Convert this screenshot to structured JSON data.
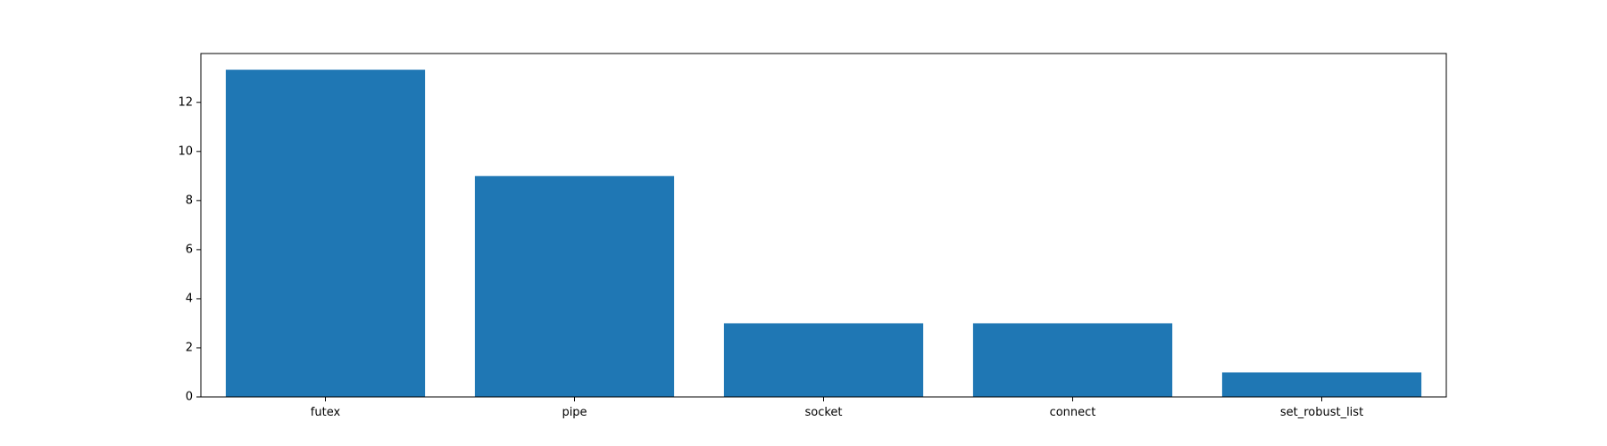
{
  "chart_data": {
    "type": "bar",
    "categories": [
      "futex",
      "pipe",
      "socket",
      "connect",
      "set_robust_list"
    ],
    "values": [
      13.33,
      9,
      3,
      3,
      1
    ],
    "ylim": [
      0,
      13.99
    ],
    "yticks": [
      0,
      2,
      4,
      6,
      8,
      10,
      12
    ],
    "title": "",
    "xlabel": "",
    "ylabel": "",
    "grid": false,
    "legend": "none",
    "colors": {
      "bar": "#1f77b4",
      "axis": "#000000",
      "background": "#ffffff"
    }
  }
}
